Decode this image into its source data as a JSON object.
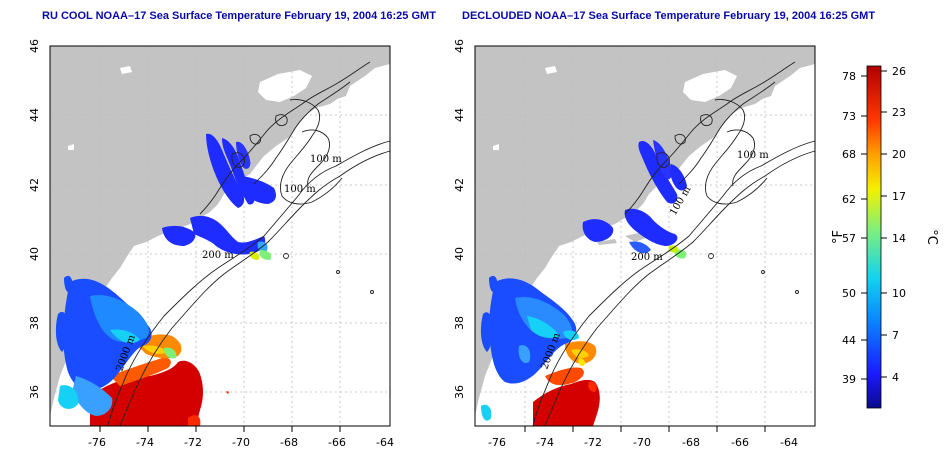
{
  "panels": [
    {
      "id": "left",
      "title": "RU COOL NOAA–17 Sea Surface Temperature February 19, 2004 16:25 GMT"
    },
    {
      "id": "right",
      "title": "DECLOUDED NOAA–17 Sea Surface Temperature February 19, 2004 16:25 GMT"
    }
  ],
  "axes": {
    "x_ticks": [
      "-76",
      "-74",
      "-72",
      "-70",
      "-68",
      "-66",
      "-64"
    ],
    "y_ticks": [
      "36",
      "38",
      "40",
      "42",
      "44",
      "46"
    ],
    "lon_range": [
      -77.2,
      -62.7
    ],
    "lat_range": [
      35.0,
      46.0
    ]
  },
  "contour_labels": [
    "100 m",
    "100 m",
    "200 m",
    "2000 m"
  ],
  "colorbar": {
    "fahrenheit_ticks": [
      "78",
      "73",
      "68",
      "62",
      "57",
      "50",
      "44",
      "39"
    ],
    "celsius_ticks": [
      "26",
      "23",
      "20",
      "17",
      "14",
      "10",
      "7",
      "4"
    ],
    "fahrenheit_unit": "°F",
    "celsius_unit": "°C",
    "range_c": [
      1.5,
      26.0
    ]
  },
  "colors": {
    "land": "#c3c3c3",
    "title": "#0a0aa8",
    "colormap": [
      "#0a0a8a",
      "#1a1aff",
      "#0a82ff",
      "#14d2f0",
      "#7ef07a",
      "#f5f000",
      "#ffa000",
      "#ff3a00",
      "#b00000"
    ]
  }
}
